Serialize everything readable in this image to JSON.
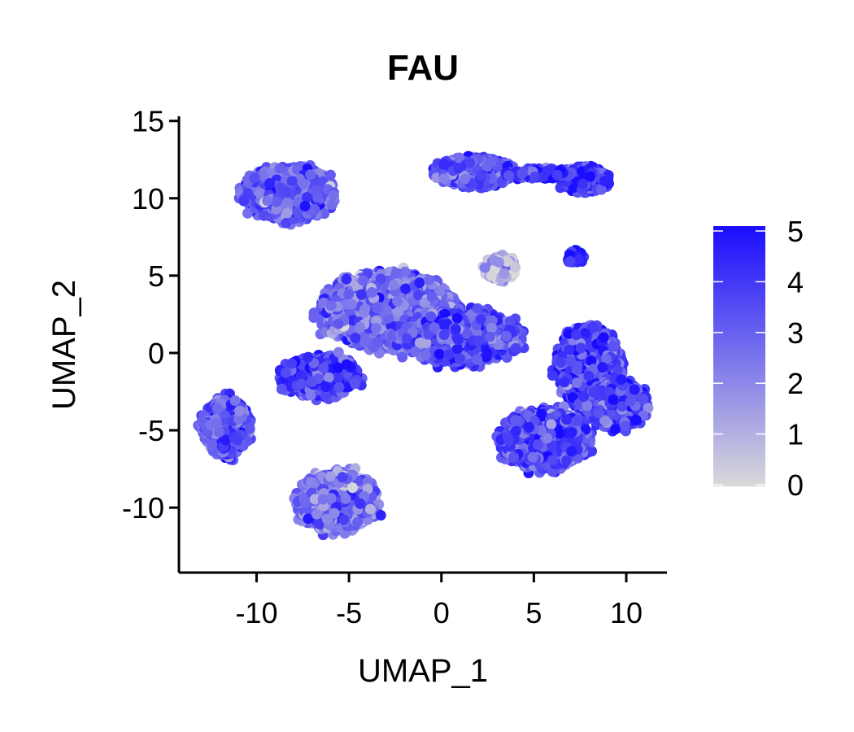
{
  "chart_data": {
    "type": "scatter",
    "title": "FAU",
    "xlabel": "UMAP_1",
    "ylabel": "UMAP_2",
    "xlim": [
      -14.2,
      12.2
    ],
    "ylim": [
      -14.2,
      15.3
    ],
    "xticks": [
      -10,
      -5,
      0,
      5,
      10
    ],
    "yticks": [
      -10,
      -5,
      0,
      5,
      10,
      15
    ],
    "grid": false,
    "color_scale": {
      "min": 0,
      "max": 5,
      "ticks": [
        0,
        1,
        2,
        3,
        4,
        5
      ],
      "low_color": "#d9d9d9",
      "high_color": "#1a0dff",
      "legend_placement": "right"
    },
    "clusters": [
      {
        "center": [
          -8.2,
          10.3
        ],
        "spread": [
          2.2,
          1.6
        ],
        "n": 1800,
        "mean_expr": 3.0
      },
      {
        "center": [
          -11.7,
          -4.8
        ],
        "spread": [
          1.2,
          1.8
        ],
        "n": 700,
        "mean_expr": 3.3
      },
      {
        "center": [
          -5.6,
          -9.6
        ],
        "spread": [
          2.0,
          1.8
        ],
        "n": 1300,
        "mean_expr": 2.6
      },
      {
        "center": [
          -2.8,
          2.7
        ],
        "spread": [
          3.3,
          2.3
        ],
        "n": 2800,
        "mean_expr": 2.7
      },
      {
        "center": [
          1.0,
          1.0
        ],
        "spread": [
          3.0,
          1.6
        ],
        "n": 1500,
        "mean_expr": 3.4
      },
      {
        "center": [
          -6.5,
          -1.5
        ],
        "spread": [
          2.0,
          1.3
        ],
        "n": 500,
        "mean_expr": 3.8
      },
      {
        "center": [
          3.2,
          5.5
        ],
        "spread": [
          0.8,
          0.8
        ],
        "n": 160,
        "mean_expr": 1.0
      },
      {
        "center": [
          1.8,
          11.7
        ],
        "spread": [
          2.0,
          0.9
        ],
        "n": 900,
        "mean_expr": 3.4
      },
      {
        "center": [
          7.8,
          11.2
        ],
        "spread": [
          1.2,
          0.8
        ],
        "n": 420,
        "mean_expr": 4.0
      },
      {
        "center": [
          5.3,
          11.6
        ],
        "spread": [
          1.6,
          0.3
        ],
        "n": 200,
        "mean_expr": 4.0
      },
      {
        "center": [
          7.3,
          6.2
        ],
        "spread": [
          0.4,
          0.5
        ],
        "n": 40,
        "mean_expr": 4.5
      },
      {
        "center": [
          8.0,
          -1.0
        ],
        "spread": [
          1.6,
          2.5
        ],
        "n": 1500,
        "mean_expr": 3.8
      },
      {
        "center": [
          9.4,
          -3.4
        ],
        "spread": [
          1.6,
          1.4
        ],
        "n": 700,
        "mean_expr": 3.7
      },
      {
        "center": [
          5.6,
          -5.6
        ],
        "spread": [
          2.2,
          1.8
        ],
        "n": 1700,
        "mean_expr": 3.6
      }
    ]
  }
}
